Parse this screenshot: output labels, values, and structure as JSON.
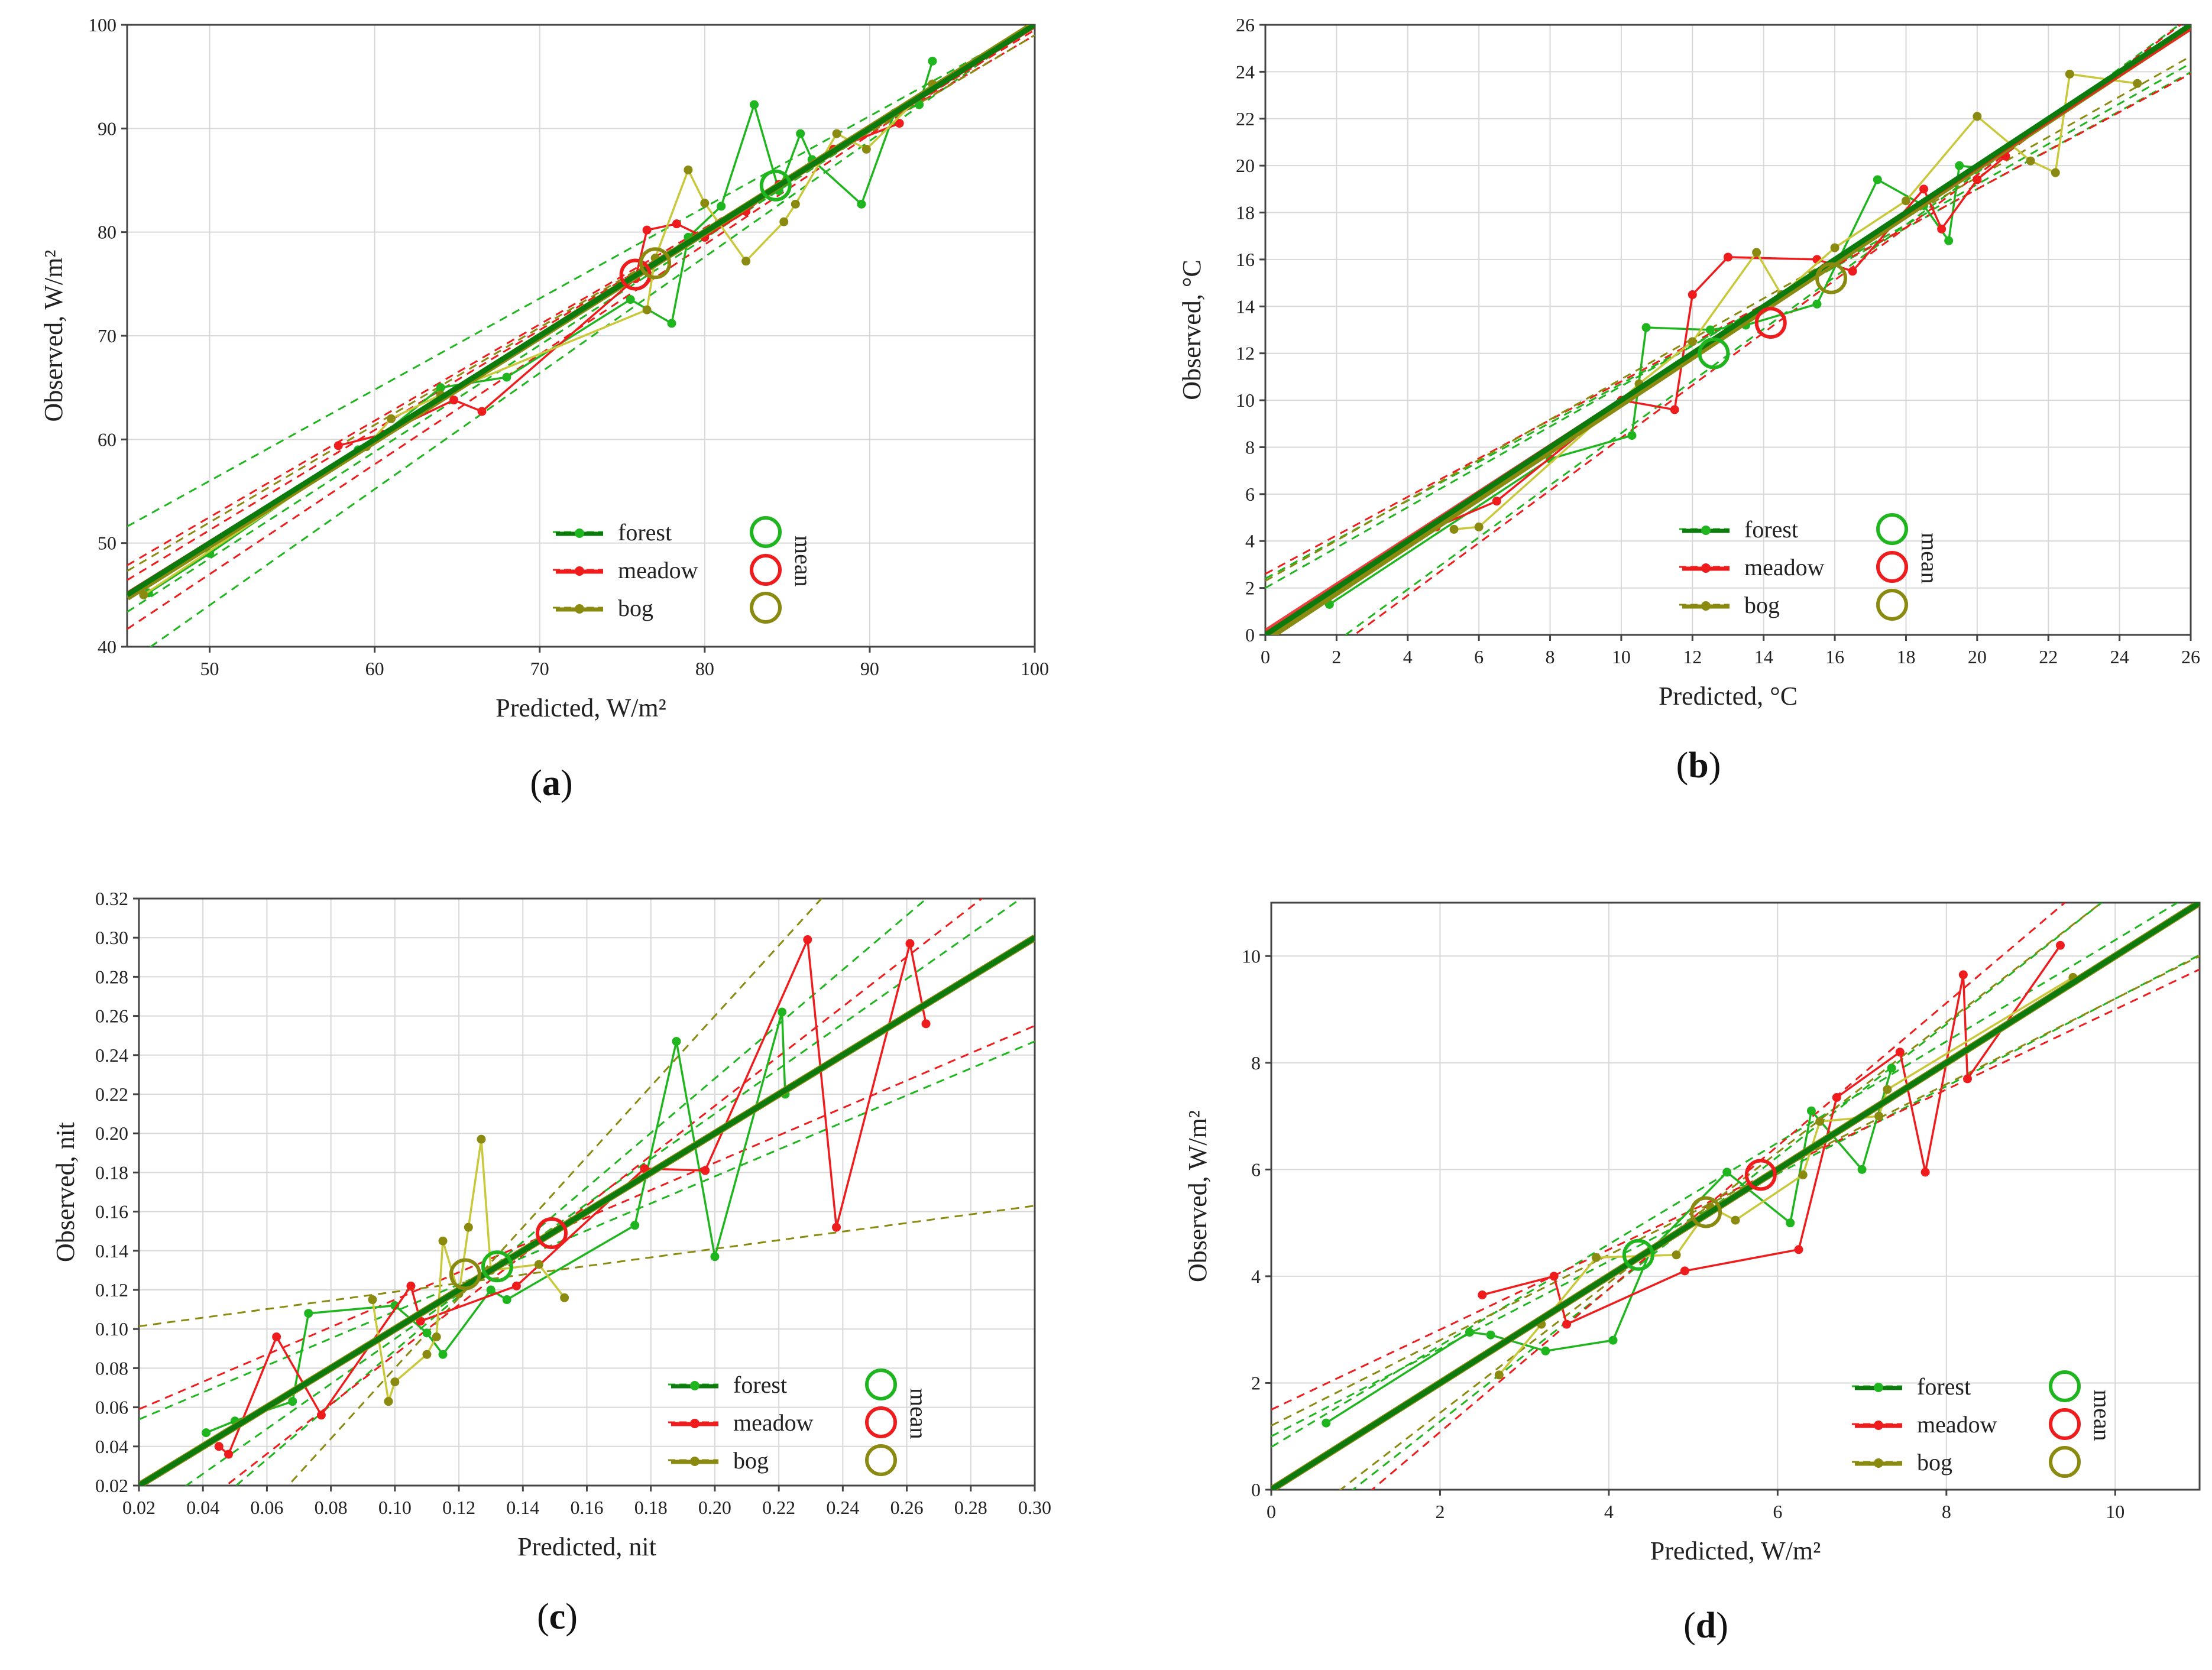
{
  "colors": {
    "forest": "#1fb51f",
    "forest_dark": "#0d7a0d",
    "meadow": "#ee1c1c",
    "bog": "#8a8a10",
    "bog_light": "#c8c83a",
    "grid": "#d8d8d8",
    "axis": "#444444"
  },
  "legend": {
    "items": [
      "forest",
      "meadow",
      "bog"
    ],
    "mean_label": "mean"
  },
  "chart_data": [
    {
      "id": "a",
      "type": "scatter",
      "panel_label": "a",
      "xlabel": "Predicted, W/m²",
      "ylabel": "Observed, W/m²",
      "xlim": [
        45,
        100
      ],
      "ylim": [
        40,
        100
      ],
      "xticks": [
        50,
        60,
        70,
        80,
        90,
        100
      ],
      "yticks": [
        40,
        50,
        60,
        70,
        80,
        90,
        100
      ],
      "decimals": 0,
      "means": {
        "forest": [
          84.3,
          84.5
        ],
        "meadow": [
          75.8,
          75.9
        ],
        "bog": [
          77.0,
          77.0
        ]
      },
      "series": [
        {
          "name": "forest",
          "x": [
            46.3,
            50.0,
            59.0,
            60.5,
            64.0,
            68.0,
            75.5,
            78.0,
            79.0,
            81.0,
            83.0,
            84.5,
            85.8,
            86.5,
            89.5,
            91.5,
            93.0,
            93.8
          ],
          "y": [
            45.2,
            49.0,
            59.0,
            60.5,
            65.0,
            66.0,
            73.5,
            71.2,
            79.5,
            82.5,
            92.3,
            84.0,
            89.5,
            87.0,
            82.7,
            91.5,
            92.3,
            96.5
          ]
        },
        {
          "name": "meadow",
          "x": [
            57.8,
            60.5,
            64.8,
            66.5,
            75.8,
            76.5,
            78.3,
            80.0,
            82.5,
            84.5,
            87.8,
            91.8
          ],
          "y": [
            59.4,
            60.5,
            63.8,
            62.7,
            75.5,
            80.2,
            80.8,
            79.5,
            82.0,
            84.6,
            88.0,
            90.5
          ]
        },
        {
          "name": "bog",
          "x": [
            46.0,
            59.5,
            61.0,
            64.0,
            76.5,
            77.0,
            79.0,
            80.0,
            82.5,
            84.8,
            85.5,
            88.0,
            89.8,
            93.8
          ],
          "y": [
            45.0,
            59.3,
            62.0,
            64.3,
            72.5,
            77.5,
            86.0,
            82.8,
            77.2,
            81.0,
            82.7,
            89.5,
            88.0,
            94.3
          ]
        }
      ],
      "fits": {
        "forest": [
          0.0,
          1.0
        ],
        "meadow": [
          0.5,
          0.993
        ],
        "bog": [
          -0.5,
          1.006
        ]
      },
      "bands": {
        "forest": [
          [
            0,
            1.0
          ],
          [
            12,
            0.88
          ],
          [
            -12,
            1.12
          ],
          [
            -3,
            1.03
          ]
        ],
        "meadow": [
          [
            6,
            0.93
          ],
          [
            -6,
            1.06
          ],
          [
            3,
            0.965
          ]
        ],
        "bog": [
          [
            5,
            0.94
          ]
        ]
      }
    },
    {
      "id": "b",
      "type": "scatter",
      "panel_label": "b",
      "xlabel": "Predicted, °C",
      "ylabel": "Observed, °C",
      "xlim": [
        0,
        26
      ],
      "ylim": [
        0,
        26
      ],
      "xticks": [
        0,
        2,
        4,
        6,
        8,
        10,
        12,
        14,
        16,
        18,
        20,
        22,
        24,
        26
      ],
      "yticks": [
        0,
        2,
        4,
        6,
        8,
        10,
        12,
        14,
        16,
        18,
        20,
        22,
        24,
        26
      ],
      "decimals": 0,
      "means": {
        "forest": [
          12.6,
          12.0
        ],
        "meadow": [
          14.2,
          13.3
        ],
        "bog": [
          15.9,
          15.2
        ]
      },
      "series": [
        {
          "name": "forest",
          "x": [
            1.8,
            8.0,
            10.3,
            10.7,
            12.5,
            13.5,
            15.5,
            17.2,
            18.5,
            19.2,
            19.5,
            20.0
          ],
          "y": [
            1.3,
            7.5,
            8.5,
            13.1,
            13.0,
            13.2,
            14.1,
            19.4,
            18.3,
            16.8,
            20.0,
            19.9
          ]
        },
        {
          "name": "meadow",
          "x": [
            4.8,
            6.5,
            10.0,
            11.5,
            12.0,
            13.0,
            15.5,
            16.5,
            18.5,
            19.0,
            20.0,
            20.8
          ],
          "y": [
            4.6,
            5.7,
            10.0,
            9.6,
            14.5,
            16.1,
            16.0,
            15.5,
            19.0,
            17.3,
            19.4,
            20.4
          ]
        },
        {
          "name": "bog",
          "x": [
            5.3,
            6.0,
            10.5,
            12.0,
            13.8,
            14.5,
            16.0,
            18.0,
            20.0,
            21.5,
            22.2,
            22.6,
            24.5
          ],
          "y": [
            4.5,
            4.6,
            10.7,
            12.5,
            16.3,
            14.5,
            16.5,
            18.5,
            22.1,
            20.2,
            19.7,
            23.9,
            23.5
          ]
        }
      ],
      "fits": {
        "forest": [
          0.0,
          1.0
        ],
        "meadow": [
          0.2,
          0.985
        ],
        "bog": [
          -0.2,
          1.005
        ]
      },
      "bands": {
        "forest": [
          [
            2.0,
            0.86
          ],
          [
            -2.5,
            1.11
          ],
          [
            2.4,
            0.83
          ]
        ],
        "meadow": [
          [
            2.6,
            0.82
          ],
          [
            -2.8,
            1.12
          ]
        ],
        "bog": [
          [
            2.3,
            0.86
          ]
        ]
      }
    },
    {
      "id": "c",
      "type": "scatter",
      "panel_label": "c",
      "xlabel": "Predicted, nit",
      "ylabel": "Observed, nit",
      "xlim": [
        0.02,
        0.3
      ],
      "ylim": [
        0.02,
        0.32
      ],
      "xticks": [
        0.02,
        0.04,
        0.06,
        0.08,
        0.1,
        0.12,
        0.14,
        0.16,
        0.18,
        0.2,
        0.22,
        0.24,
        0.26,
        0.28,
        0.3
      ],
      "yticks": [
        0.02,
        0.04,
        0.06,
        0.08,
        0.1,
        0.12,
        0.14,
        0.16,
        0.18,
        0.2,
        0.22,
        0.24,
        0.26,
        0.28,
        0.3,
        0.32
      ],
      "decimals": 2,
      "means": {
        "forest": [
          0.132,
          0.132
        ],
        "meadow": [
          0.149,
          0.149
        ],
        "bog": [
          0.122,
          0.128
        ]
      },
      "series": [
        {
          "name": "forest",
          "x": [
            0.041,
            0.05,
            0.068,
            0.073,
            0.1,
            0.11,
            0.115,
            0.13,
            0.135,
            0.175,
            0.188,
            0.2,
            0.221,
            0.222
          ],
          "y": [
            0.047,
            0.053,
            0.063,
            0.108,
            0.112,
            0.098,
            0.087,
            0.12,
            0.115,
            0.153,
            0.247,
            0.137,
            0.262,
            0.22
          ]
        },
        {
          "name": "meadow",
          "x": [
            0.045,
            0.048,
            0.063,
            0.077,
            0.105,
            0.108,
            0.138,
            0.178,
            0.197,
            0.229,
            0.238,
            0.261,
            0.266
          ],
          "y": [
            0.04,
            0.036,
            0.096,
            0.056,
            0.122,
            0.104,
            0.122,
            0.182,
            0.181,
            0.299,
            0.152,
            0.297,
            0.256
          ]
        },
        {
          "name": "bog",
          "x": [
            0.093,
            0.098,
            0.1,
            0.11,
            0.113,
            0.115,
            0.12,
            0.123,
            0.127,
            0.13,
            0.145,
            0.153
          ],
          "y": [
            0.115,
            0.063,
            0.073,
            0.087,
            0.096,
            0.145,
            0.118,
            0.152,
            0.197,
            0.13,
            0.133,
            0.116
          ]
        }
      ],
      "fits": {
        "forest": [
          0.0,
          1.0
        ],
        "meadow": [
          0.0,
          1.0
        ],
        "bog": [
          0.0,
          1.0
        ]
      },
      "bands": {
        "forest": [
          [
            0.04,
            0.69
          ],
          [
            -0.05,
            1.39
          ],
          [
            -0.02,
            1.15
          ]
        ],
        "meadow": [
          [
            0.045,
            0.7
          ],
          [
            -0.04,
            1.27
          ]
        ],
        "bog": [
          [
            0.097,
            0.22
          ],
          [
            -0.1,
            1.8
          ]
        ]
      }
    },
    {
      "id": "d",
      "type": "scatter",
      "panel_label": "d",
      "xlabel": "Predicted, W/m²",
      "ylabel": "Observed, W/m²",
      "xlim": [
        0,
        11
      ],
      "ylim": [
        0,
        11
      ],
      "xticks": [
        0,
        2,
        4,
        6,
        8,
        10
      ],
      "yticks": [
        0,
        2,
        4,
        6,
        8,
        10
      ],
      "decimals": 0,
      "means": {
        "forest": [
          4.35,
          4.4
        ],
        "meadow": [
          5.8,
          5.9
        ],
        "bog": [
          5.15,
          5.2
        ]
      },
      "series": [
        {
          "name": "forest",
          "x": [
            0.65,
            2.35,
            2.6,
            3.25,
            4.05,
            4.5,
            5.4,
            6.15,
            6.4,
            7.0,
            7.35
          ],
          "y": [
            1.25,
            2.95,
            2.9,
            2.6,
            2.8,
            4.5,
            5.95,
            5.0,
            7.1,
            6.0,
            7.9
          ]
        },
        {
          "name": "meadow",
          "x": [
            2.5,
            3.35,
            3.5,
            4.9,
            6.25,
            6.7,
            7.45,
            7.75,
            8.2,
            8.25,
            9.35
          ],
          "y": [
            3.65,
            4.0,
            3.1,
            4.1,
            4.5,
            7.35,
            8.2,
            5.95,
            9.65,
            7.7,
            10.2
          ]
        },
        {
          "name": "bog",
          "x": [
            2.7,
            3.2,
            3.85,
            4.8,
            5.2,
            5.5,
            6.3,
            6.5,
            7.2,
            7.3,
            9.5
          ],
          "y": [
            2.15,
            3.1,
            4.35,
            4.4,
            5.3,
            5.05,
            5.9,
            6.9,
            7.0,
            7.5,
            9.6
          ]
        }
      ],
      "fits": {
        "forest": [
          0.0,
          1.0
        ],
        "meadow": [
          0.0,
          1.0
        ],
        "bog": [
          0.0,
          1.0
        ]
      },
      "bands": {
        "forest": [
          [
            1.0,
            0.82
          ],
          [
            -1.2,
            1.24
          ],
          [
            0.8,
            0.95
          ]
        ],
        "meadow": [
          [
            1.5,
            0.75
          ],
          [
            -1.6,
            1.34
          ]
        ],
        "bog": [
          [
            1.2,
            0.8
          ],
          [
            -1.0,
            1.22
          ]
        ]
      }
    }
  ]
}
